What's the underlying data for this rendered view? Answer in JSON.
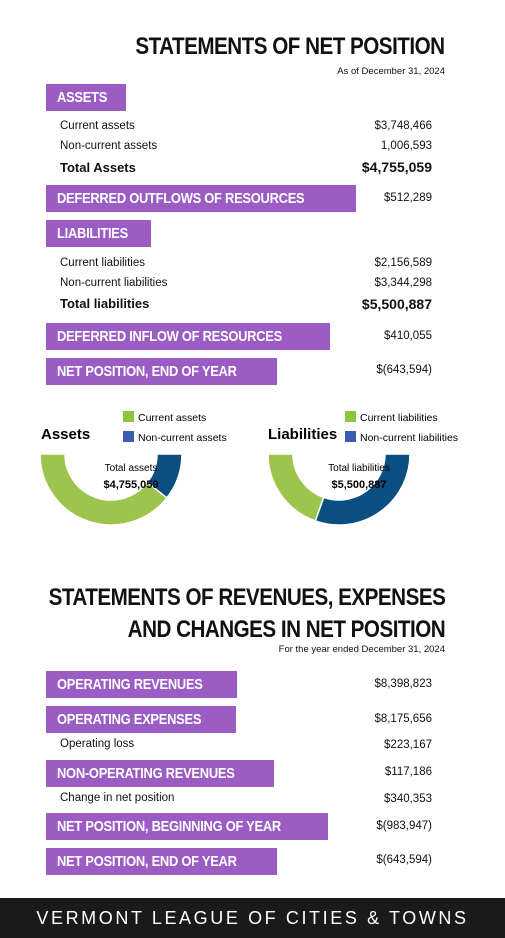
{
  "net_position": {
    "title": "STATEMENTS OF NET POSITION",
    "subtitle": "As of December 31, 2024",
    "assets": {
      "badge": "ASSETS",
      "rows": [
        {
          "label": "Current assets",
          "value": "$3,748,466"
        },
        {
          "label": "Non-current assets",
          "value": "1,006,593"
        }
      ],
      "total_label": "Total Assets",
      "total_value": "$4,755,059"
    },
    "deferred_outflows": {
      "badge": "DEFERRED OUTFLOWS OF RESOURCES",
      "value": "$512,289"
    },
    "liabilities": {
      "badge": "LIABILITIES",
      "rows": [
        {
          "label": "Current liabilities",
          "value": "$2,156,589"
        },
        {
          "label": "Non-current liabilities",
          "value": "$3,344,298"
        }
      ],
      "total_label": "Total liabilities",
      "total_value": "$5,500,887"
    },
    "deferred_inflow": {
      "badge": "DEFERRED INFLOW OF RESOURCES",
      "value": "$410,055"
    },
    "end_of_year": {
      "badge": "NET POSITION, END OF YEAR",
      "value": "$(643,594)"
    }
  },
  "chart_data": [
    {
      "type": "pie",
      "title": "Assets",
      "center_label": "Total assets",
      "center_value": "$4,755,059",
      "slices": [
        {
          "name": "Current assets",
          "value": 3748466,
          "color": "#9dc44d"
        },
        {
          "name": "Non-current assets",
          "value": 1006593,
          "color": "#0b4f80"
        }
      ],
      "legend_placement": "top-right"
    },
    {
      "type": "pie",
      "title": "Liabilities",
      "center_label": "Total liabilities",
      "center_value": "$5,500,887",
      "slices": [
        {
          "name": "Current liabilities",
          "value": 2156589,
          "color": "#9dc44d"
        },
        {
          "name": "Non-current liabilities",
          "value": 3344298,
          "color": "#0b4f80"
        }
      ],
      "legend_placement": "top-right"
    }
  ],
  "legend_swatch_colors": {
    "current": "#8cc63f",
    "noncurrent": "#3b5bb5"
  },
  "revenues": {
    "title_line1": "STATEMENTS OF REVENUES, EXPENSES",
    "title_line2": "AND CHANGES IN NET POSITION",
    "subtitle": "For the year ended December 31, 2024",
    "operating_revenues": {
      "badge": "OPERATING REVENUES",
      "value": "$8,398,823"
    },
    "operating_expenses": {
      "badge": "OPERATING EXPENSES",
      "value": "$8,175,656"
    },
    "operating_loss": {
      "label": "Operating loss",
      "value": "$223,167"
    },
    "non_operating": {
      "badge": "NON-OPERATING REVENUES",
      "value": "$117,186"
    },
    "change": {
      "label": "Change in net position",
      "value": "$340,353"
    },
    "beginning": {
      "badge": "NET POSITION, BEGINNING OF YEAR",
      "value": "$(983,947)"
    },
    "end": {
      "badge": "NET POSITION, END OF YEAR",
      "value": "$(643,594)"
    }
  },
  "footer": "VERMONT LEAGUE OF CITIES & TOWNS",
  "colors": {
    "badge": "#9b5cc4",
    "footer": "#1a1a1a"
  }
}
